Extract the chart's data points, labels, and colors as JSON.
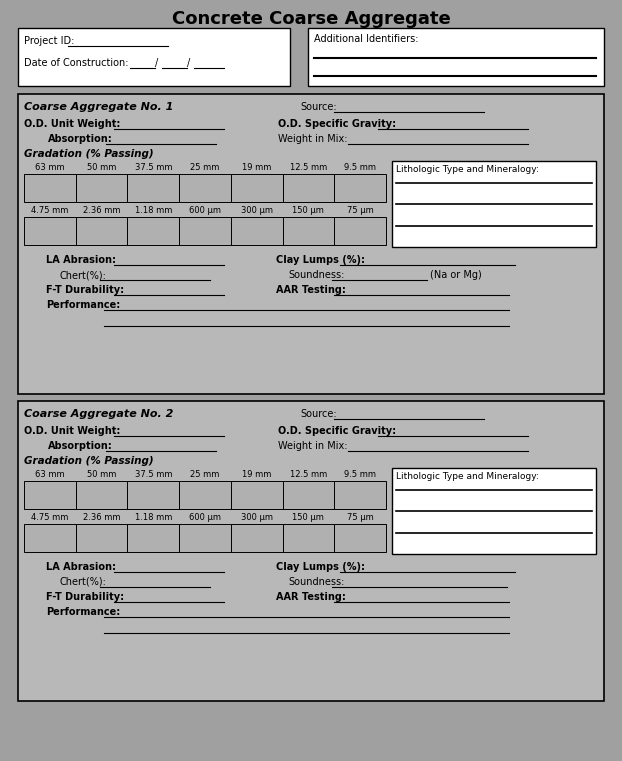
{
  "title": "Concrete Coarse Aggregate",
  "title_fontsize": 13,
  "bg_color": "#a0a0a0",
  "white": "#ffffff",
  "black": "#000000",
  "light_gray": "#b0b0b0",
  "form_bg": "#b8b8b8",
  "agg_sections": [
    {
      "title": "Coarse Aggregate No. 1",
      "source_label": "Source:",
      "unit_weight_label": "O.D. Unit Weight:",
      "sp_gravity_label": "O.D. Specific Gravity:",
      "absorption_label": "Absorption:",
      "weight_in_mix_label": "Weight in Mix:",
      "gradation_label": "Gradation (% Passing)",
      "sieve_row1": [
        "63 mm",
        "50 mm",
        "37.5 mm",
        "25 mm",
        "19 mm",
        "12.5 mm",
        "9.5 mm"
      ],
      "sieve_row2": [
        "4.75 mm",
        "2.36 mm",
        "1.18 mm",
        "600 μm",
        "300 μm",
        "150 μm",
        "75 μm"
      ],
      "litho_label": "Lithologic Type and Mineralogy:",
      "la_abrasion_label": "LA Abrasion:",
      "clay_lumps_label": "Clay Lumps (%):",
      "chert_label": "Chert(%):",
      "soundness_label": "Soundness:",
      "na_or_mg": "(Na or Mg)",
      "ft_dur_label": "F-T Durability:",
      "aar_label": "AAR Testing:",
      "performance_label": "Performance:",
      "has_na_mg": true
    },
    {
      "title": "Coarse Aggregate No. 2",
      "source_label": "Source:",
      "unit_weight_label": "O.D. Unit Weight:",
      "sp_gravity_label": "O.D. Specific Gravity:",
      "absorption_label": "Absorption:",
      "weight_in_mix_label": "Weight in Mix:",
      "gradation_label": "Gradation (% Passing)",
      "sieve_row1": [
        "63 mm",
        "50 mm",
        "37.5 mm",
        "25 mm",
        "19 mm",
        "12.5 mm",
        "9.5 mm"
      ],
      "sieve_row2": [
        "4.75 mm",
        "2.36 mm",
        "1.18 mm",
        "600 μm",
        "300 μm",
        "150 μm",
        "75 μm"
      ],
      "litho_label": "Lithologic Type and Mineralogy:",
      "la_abrasion_label": "LA Abrasion:",
      "clay_lumps_label": "Clay Lumps (%):",
      "chert_label": "Chert(%):",
      "soundness_label": "Soundness:",
      "na_or_mg": "",
      "ft_dur_label": "F-T Durability:",
      "aar_label": "AAR Testing:",
      "performance_label": "Performance:",
      "has_na_mg": false
    }
  ]
}
